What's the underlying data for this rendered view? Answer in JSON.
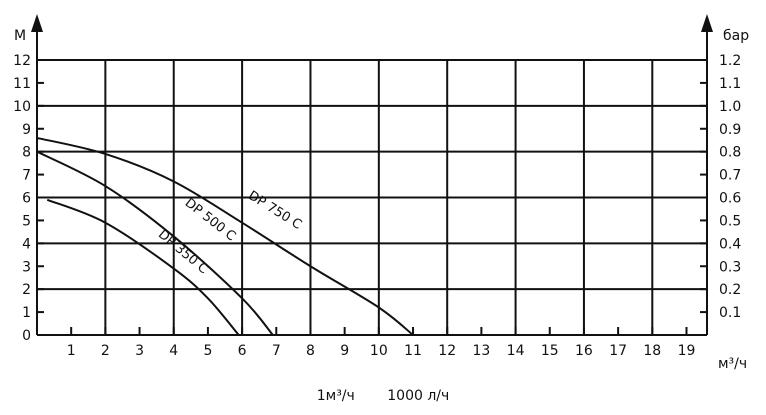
{
  "chart_data": {
    "type": "line",
    "ylabel": "М",
    "y2label": "бар",
    "xunit": "м³/ч",
    "ylim": [
      0,
      12
    ],
    "y2lim": [
      0,
      1.2
    ],
    "xlim": [
      0,
      19.6
    ],
    "grid": true,
    "xticks": [
      "1",
      "2",
      "3",
      "4",
      "5",
      "6",
      "7",
      "8",
      "9",
      "10",
      "11",
      "12",
      "13",
      "14",
      "15",
      "16",
      "17",
      "18",
      "19"
    ],
    "xgrid": [
      2,
      4,
      6,
      8,
      10,
      12,
      14,
      16,
      18
    ],
    "yticks": [
      "0",
      "1",
      "2",
      "3",
      "4",
      "5",
      "6",
      "7",
      "8",
      "9",
      "10",
      "11",
      "12"
    ],
    "ygrid": [
      2,
      4,
      6,
      8,
      10,
      12
    ],
    "y2ticks": [
      "0.1",
      "0.2",
      "0.3",
      "0.4",
      "0.5",
      "0.6",
      "0.7",
      "0.8",
      "0.9",
      "1.0",
      "1.1",
      "1.2"
    ],
    "series": [
      {
        "name": "DP 350 C",
        "x": [
          0.3,
          2.0,
          4.0,
          5.0,
          5.9
        ],
        "y": [
          5.9,
          4.9,
          2.9,
          1.6,
          0.0
        ]
      },
      {
        "name": "DP 500 C",
        "x": [
          0.0,
          2.0,
          4.0,
          6.0,
          6.9
        ],
        "y": [
          8.0,
          6.5,
          4.3,
          1.6,
          0.0
        ]
      },
      {
        "name": "DP 750 C",
        "x": [
          0.0,
          2.0,
          4.0,
          6.0,
          8.0,
          10.0,
          11.0
        ],
        "y": [
          8.6,
          7.9,
          6.7,
          4.9,
          3.0,
          1.2,
          0.0
        ]
      }
    ]
  },
  "footer": {
    "unit_left": "1м³/ч",
    "unit_right": "1000 л/ч"
  }
}
